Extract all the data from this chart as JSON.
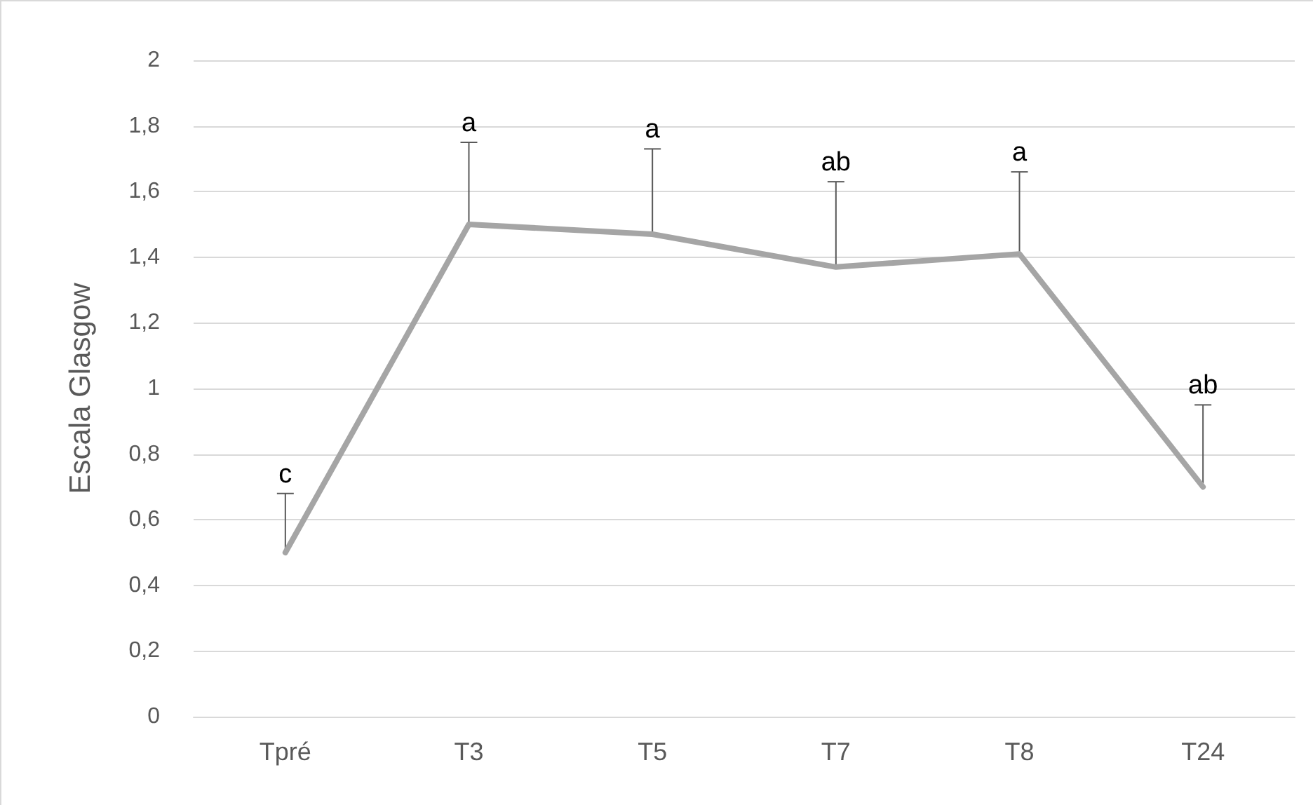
{
  "chart_data": {
    "type": "line",
    "ylabel": "Escala Glasgow",
    "categories": [
      "Tpré",
      "T3",
      "T5",
      "T7",
      "T8",
      "T24"
    ],
    "series": [
      {
        "color": "#a5a5a5",
        "values": [
          0.5,
          1.5,
          1.47,
          1.37,
          1.41,
          0.7
        ],
        "errors": [
          [
            0.5,
            0.68
          ],
          [
            1.5,
            1.75
          ],
          [
            1.47,
            1.73
          ],
          [
            1.37,
            1.63
          ],
          [
            1.41,
            1.66
          ],
          [
            0.7,
            0.95
          ]
        ]
      }
    ],
    "ylim": [
      0,
      2
    ],
    "yticks": [
      0,
      {
        "value": 0.2,
        "label": "0,2"
      },
      {
        "value": 0.4,
        "label": "0,4"
      },
      {
        "value": 0.6,
        "label": "0,6"
      },
      {
        "value": 0.8,
        "label": "0,8"
      },
      1,
      {
        "value": 1.2,
        "label": "1,2"
      },
      {
        "value": 1.4,
        "label": "1,4"
      },
      {
        "value": 1.6,
        "label": "1,6"
      },
      {
        "value": 1.8,
        "label": "1,8"
      },
      2
    ],
    "annotations": [
      {
        "text": "c",
        "x": "Tpré",
        "y": 0.68
      },
      {
        "text": "a",
        "x": "T3",
        "y": 1.75
      },
      {
        "text": "a",
        "x": "T5",
        "y": 1.73
      },
      {
        "text": "ab",
        "x": "T7",
        "y": 1.63
      },
      {
        "text": "a",
        "x": "T8",
        "y": 1.66
      },
      {
        "text": "ab",
        "x": "T24",
        "y": 0.95
      }
    ],
    "grid": "y",
    "marker": "none",
    "line_style": "solid"
  }
}
